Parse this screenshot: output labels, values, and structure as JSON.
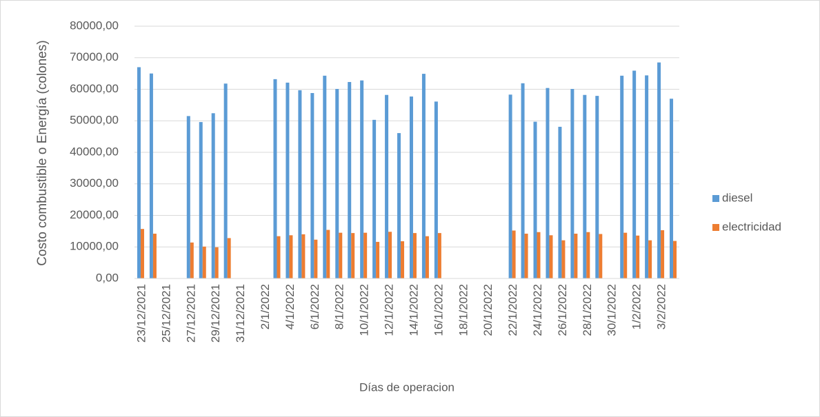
{
  "chart_data": {
    "type": "bar",
    "x_label": "Días de operacion",
    "y_label": "Costo combustible o Energía (colones)",
    "categories": [
      "23/12/2021",
      null,
      "25/12/2021",
      null,
      "27/12/2021",
      null,
      "29/12/2021",
      null,
      "31/12/2021",
      null,
      "2/1/2022",
      null,
      "4/1/2022",
      null,
      "6/1/2022",
      null,
      "8/1/2022",
      null,
      "10/1/2022",
      null,
      "12/1/2022",
      null,
      "14/1/2022",
      null,
      "16/1/2022",
      null,
      "18/1/2022",
      null,
      "20/1/2022",
      null,
      "22/1/2022",
      null,
      "24/1/2022",
      null,
      "26/1/2022",
      null,
      "28/1/2022",
      null,
      "30/1/2022",
      null,
      "1/2/2022",
      null,
      "3/2/2022",
      null
    ],
    "series": [
      {
        "name": "diesel",
        "color": "#5b9bd5",
        "values": [
          67000,
          65000,
          null,
          null,
          51500,
          49600,
          52400,
          61800,
          null,
          null,
          null,
          63200,
          62100,
          59700,
          58800,
          64300,
          60100,
          62300,
          62800,
          50300,
          58200,
          46100,
          57700,
          64900,
          56100,
          null,
          null,
          null,
          null,
          null,
          58300,
          61900,
          49700,
          60400,
          48100,
          60100,
          58200,
          57900,
          null,
          64300,
          65900,
          64400,
          68500,
          57000
        ]
      },
      {
        "name": "electricidad",
        "color": "#ed7d31",
        "values": [
          15700,
          14200,
          null,
          null,
          11400,
          10100,
          9900,
          12800,
          null,
          null,
          null,
          13400,
          13700,
          14000,
          12300,
          15400,
          14500,
          14400,
          14500,
          11600,
          14800,
          11800,
          14400,
          13400,
          14400,
          null,
          null,
          null,
          null,
          null,
          15200,
          14200,
          14700,
          13700,
          12100,
          14200,
          14700,
          14100,
          null,
          14500,
          13600,
          12100,
          15300,
          11900
        ]
      }
    ],
    "ylim": [
      0,
      80000
    ],
    "yticks": [
      {
        "value": 0,
        "label": "0,00"
      },
      {
        "value": 10000,
        "label": "10000,00"
      },
      {
        "value": 20000,
        "label": "20000,00"
      },
      {
        "value": 30000,
        "label": "30000,00"
      },
      {
        "value": 40000,
        "label": "40000,00"
      },
      {
        "value": 50000,
        "label": "50000,00"
      },
      {
        "value": 60000,
        "label": "60000,00"
      },
      {
        "value": 70000,
        "label": "70000,00"
      },
      {
        "value": 80000,
        "label": "80000,00"
      }
    ],
    "grid": true,
    "legend": "right"
  }
}
